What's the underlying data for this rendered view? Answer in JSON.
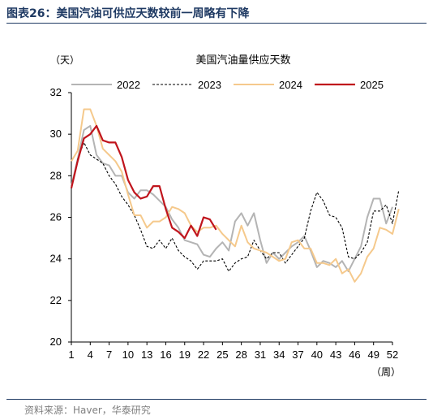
{
  "figure": {
    "label": "图表26：",
    "title": "美国汽油可供应天数较前一周略有下降",
    "source": "资料来源：Haver，华泰研究"
  },
  "chart_data": {
    "type": "line",
    "title": "美国汽油量供应天数",
    "ylabel": "（天）",
    "xlabel": "（周）",
    "ylim": [
      20,
      32
    ],
    "yticks": [
      20,
      22,
      24,
      26,
      28,
      30,
      32
    ],
    "xlim": [
      1,
      52
    ],
    "xticks": [
      1,
      4,
      7,
      10,
      13,
      16,
      19,
      22,
      25,
      28,
      31,
      34,
      37,
      40,
      43,
      46,
      49,
      52
    ],
    "grid": false,
    "legend_position": "top",
    "colors": {
      "2022": "#b4b4b4",
      "2023": "#000000",
      "2024": "#f5c98c",
      "2025": "#c0141c"
    },
    "series": [
      {
        "name": "2022",
        "style": "solid",
        "values": [
          27.5,
          28.8,
          30.2,
          30.4,
          29.0,
          28.6,
          28.5,
          28.0,
          28.0,
          27.2,
          26.9,
          27.3,
          27.3,
          27.1,
          26.8,
          26.5,
          25.9,
          25.5,
          24.9,
          24.8,
          24.7,
          24.2,
          24.1,
          24.5,
          24.8,
          24.4,
          25.8,
          26.2,
          25.6,
          26.2,
          24.9,
          23.8,
          24.3,
          24.0,
          24.3,
          24.6,
          24.8,
          25.1,
          24.4,
          23.6,
          23.9,
          23.8,
          23.6,
          23.9,
          23.4,
          24.0,
          24.6,
          26.0,
          26.9,
          26.9,
          25.7,
          26.5
        ]
      },
      {
        "name": "2023",
        "style": "dashed",
        "values": [
          27.4,
          28.8,
          29.6,
          29.0,
          28.8,
          28.6,
          28.0,
          27.6,
          27.0,
          26.6,
          26.1,
          25.4,
          24.6,
          24.5,
          24.9,
          24.5,
          25.0,
          24.4,
          24.1,
          23.9,
          23.5,
          23.9,
          23.9,
          23.9,
          24.0,
          23.4,
          23.8,
          24.0,
          24.1,
          24.9,
          24.4,
          24.0,
          24.3,
          24.3,
          23.8,
          24.2,
          24.6,
          25.0,
          26.3,
          27.2,
          26.8,
          26.1,
          26.0,
          25.5,
          24.1,
          24.0,
          24.3,
          24.8,
          26.3,
          26.3,
          26.6,
          25.7,
          27.3
        ]
      },
      {
        "name": "2024",
        "style": "solid",
        "values": [
          28.7,
          29.2,
          31.2,
          31.2,
          30.4,
          29.3,
          29.0,
          28.7,
          28.2,
          27.1,
          26.1,
          26.1,
          25.5,
          25.8,
          25.8,
          26.0,
          26.5,
          26.4,
          26.2,
          25.6,
          25.3,
          25.5,
          25.5,
          25.6,
          25.2,
          24.9,
          24.6,
          25.6,
          24.8,
          24.5,
          24.4,
          24.3,
          24.1,
          23.9,
          24.0,
          24.8,
          24.9,
          24.5,
          24.5,
          23.8,
          23.8,
          23.7,
          24.0,
          23.3,
          23.5,
          22.9,
          23.3,
          24.1,
          24.5,
          25.5,
          25.4,
          25.2,
          26.4
        ]
      },
      {
        "name": "2025",
        "style": "solid",
        "values": [
          27.4,
          28.7,
          29.8,
          30.0,
          30.4,
          29.7,
          29.6,
          29.6,
          28.9,
          27.8,
          27.2,
          26.9,
          27.0,
          27.5,
          27.5,
          26.4,
          25.5,
          25.3,
          25.0,
          25.6,
          25.1,
          26.0,
          25.9,
          25.4
        ]
      }
    ]
  }
}
